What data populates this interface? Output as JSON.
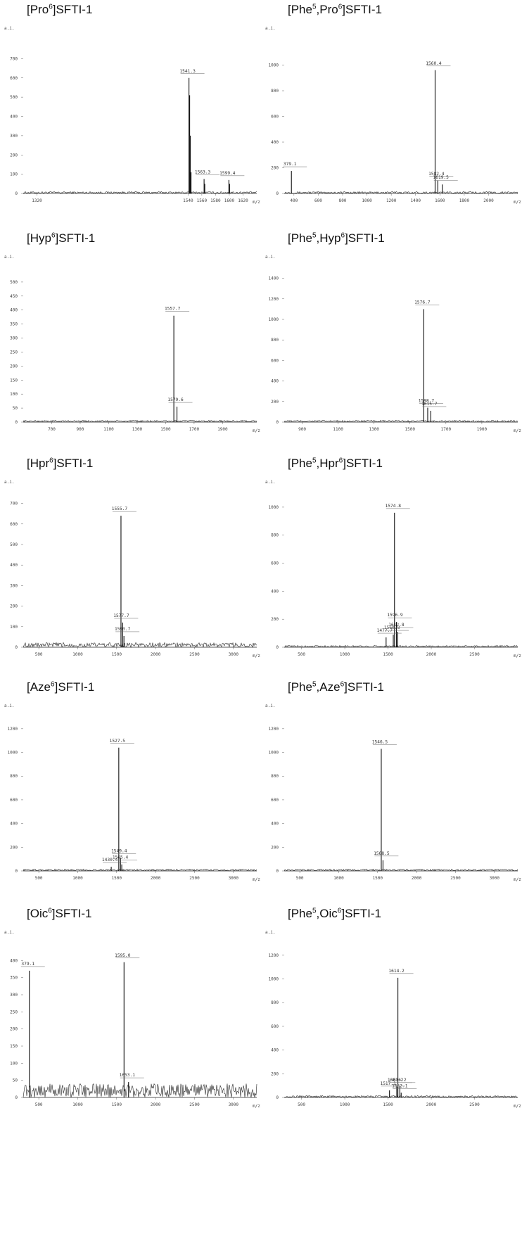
{
  "panels": [
    {
      "title_pre": "[Pro",
      "title_sup1": "6",
      "title_mid": "",
      "title_sup2": "",
      "title_post": "]SFTI-1"
    },
    {
      "title_pre": "[Phe",
      "title_sup1": "5",
      "title_mid": ",Pro",
      "title_sup2": "6",
      "title_post": "]SFTI-1"
    },
    {
      "title_pre": "[Hyp",
      "title_sup1": "6",
      "title_mid": "",
      "title_sup2": "",
      "title_post": "]SFTI-1"
    },
    {
      "title_pre": "[Phe",
      "title_sup1": "5",
      "title_mid": ",Hyp",
      "title_sup2": "6",
      "title_post": "]SFTI-1"
    },
    {
      "title_pre": "[Hpr",
      "title_sup1": "6",
      "title_mid": "",
      "title_sup2": "",
      "title_post": "]SFTI-1"
    },
    {
      "title_pre": "[Phe",
      "title_sup1": "5",
      "title_mid": ",Hpr",
      "title_sup2": "6",
      "title_post": "]SFTI-1"
    },
    {
      "title_pre": "[Aze",
      "title_sup1": "6",
      "title_mid": "",
      "title_sup2": "",
      "title_post": "]SFTI-1"
    },
    {
      "title_pre": "[Phe",
      "title_sup1": "5",
      "title_mid": ",Aze",
      "title_sup2": "6",
      "title_post": "]SFTI-1"
    },
    {
      "title_pre": "[Oic",
      "title_sup1": "6",
      "title_mid": "",
      "title_sup2": "",
      "title_post": "]SFTI-1"
    },
    {
      "title_pre": "[Phe",
      "title_sup1": "5",
      "title_mid": ",Oic",
      "title_sup2": "6",
      "title_post": "]SFTI-1"
    }
  ],
  "chart_data": [
    {
      "type": "line",
      "title": "[Pro6]SFTI-1",
      "ylabel": "a.i.",
      "xlabel": "m/z",
      "xlim": [
        1300,
        1640
      ],
      "ylim": [
        0,
        800
      ],
      "xticks": [
        1320,
        1540,
        1560,
        1580,
        1600,
        1620
      ],
      "xtick_labels": [
        "1320",
        "1540",
        "1560",
        "1580",
        "1600",
        "1620"
      ],
      "yticks": [
        0,
        100,
        200,
        300,
        400,
        500,
        600,
        700
      ],
      "peaks": [
        [
          1541.3,
          600
        ],
        [
          1542.3,
          510
        ],
        [
          1543.3,
          300
        ],
        [
          1544.3,
          110
        ],
        [
          1563.3,
          75
        ],
        [
          1564.3,
          50
        ],
        [
          1599.4,
          70
        ],
        [
          1600.4,
          50
        ]
      ],
      "peak_labels": [
        {
          "x": 1541.3,
          "text": "1541.3"
        },
        {
          "x": 1563.3,
          "text": "1563.3"
        },
        {
          "x": 1599.4,
          "text": "1599.4"
        }
      ]
    },
    {
      "type": "line",
      "title": "[Phe5,Pro6]SFTI-1",
      "ylabel": "a.i.",
      "xlabel": "m/z",
      "xlim": [
        320,
        2240
      ],
      "ylim": [
        0,
        1200
      ],
      "xticks": [
        400,
        600,
        800,
        1000,
        1200,
        1400,
        1600,
        1800,
        2000
      ],
      "xtick_labels": [
        "400",
        "600",
        "800",
        "1000",
        "1200",
        "1400",
        "1600",
        "1800",
        "2000"
      ],
      "yticks": [
        0,
        200,
        400,
        600,
        800,
        1000
      ],
      "peaks": [
        [
          379.1,
          175
        ],
        [
          1560.4,
          960
        ],
        [
          1582.4,
          100
        ],
        [
          1619.5,
          70
        ]
      ],
      "peak_labels": [
        {
          "x": 379.1,
          "text": "379.1"
        },
        {
          "x": 1560.4,
          "text": "1560.4"
        },
        {
          "x": 1582.4,
          "text": "1582.4"
        },
        {
          "x": 1619.5,
          "text": "1619.5"
        }
      ]
    },
    {
      "type": "line",
      "title": "[Hyp6]SFTI-1",
      "ylabel": "a.i.",
      "xlabel": "m/z",
      "xlim": [
        500,
        2140
      ],
      "ylim": [
        0,
        550
      ],
      "xticks": [
        700,
        900,
        1100,
        1300,
        1500,
        1700,
        1900
      ],
      "xtick_labels": [
        "700",
        "900",
        "1100",
        "1300",
        "1500",
        "1700",
        "1900"
      ],
      "yticks": [
        0,
        50,
        100,
        150,
        200,
        250,
        300,
        350,
        400,
        450,
        500
      ],
      "peaks": [
        [
          1557.7,
          380
        ],
        [
          1579.6,
          55
        ]
      ],
      "peak_labels": [
        {
          "x": 1557.7,
          "text": "1557.7"
        },
        {
          "x": 1579.6,
          "text": "1579.6"
        }
      ]
    },
    {
      "type": "line",
      "title": "[Phe5,Hyp6]SFTI-1",
      "ylabel": "a.i.",
      "xlabel": "m/z",
      "xlim": [
        800,
        2100
      ],
      "ylim": [
        0,
        1500
      ],
      "xticks": [
        900,
        1100,
        1300,
        1500,
        1700,
        1900
      ],
      "xtick_labels": [
        "900",
        "1100",
        "1300",
        "1500",
        "1700",
        "1900"
      ],
      "yticks": [
        0,
        200,
        400,
        600,
        800,
        1000,
        1200,
        1400
      ],
      "peaks": [
        [
          1576.7,
          1100
        ],
        [
          1598.7,
          140
        ],
        [
          1615.7,
          110
        ]
      ],
      "peak_labels": [
        {
          "x": 1576.7,
          "text": "1576.7"
        },
        {
          "x": 1598.7,
          "text": "1598.7"
        },
        {
          "x": 1615.7,
          "text": "1615.7"
        }
      ]
    },
    {
      "type": "line",
      "title": "[Hpr6]SFTI-1",
      "ylabel": "a.i.",
      "xlabel": "m/z",
      "xlim": [
        300,
        3300
      ],
      "ylim": [
        0,
        750
      ],
      "xticks": [
        500,
        1000,
        1500,
        2000,
        2500,
        3000
      ],
      "xtick_labels": [
        "500",
        "1000",
        "1500",
        "2000",
        "2500",
        "3000"
      ],
      "yticks": [
        0,
        100,
        200,
        300,
        400,
        500,
        600,
        700
      ],
      "peaks": [
        [
          1555.7,
          640
        ],
        [
          1577.7,
          120
        ],
        [
          1593.7,
          55
        ]
      ],
      "peak_labels": [
        {
          "x": 1555.7,
          "text": "1555.7"
        },
        {
          "x": 1577.7,
          "text": "1577.7"
        },
        {
          "x": 1593.7,
          "text": "1593.7"
        }
      ]
    },
    {
      "type": "line",
      "title": "[Phe5,Hpr6]SFTI-1",
      "ylabel": "a.i.",
      "xlabel": "m/z",
      "xlim": [
        300,
        3000
      ],
      "ylim": [
        0,
        1100
      ],
      "xticks": [
        500,
        1000,
        1500,
        2000,
        2500
      ],
      "xtick_labels": [
        "500",
        "1000",
        "1500",
        "2000",
        "2500"
      ],
      "yticks": [
        0,
        200,
        400,
        600,
        800,
        1000
      ],
      "peaks": [
        [
          1477.7,
          70
        ],
        [
          1560.8,
          90
        ],
        [
          1574.8,
          960
        ],
        [
          1596.9,
          180
        ],
        [
          1612.8,
          110
        ]
      ],
      "peak_labels": [
        {
          "x": 1477.7,
          "text": "1477.7"
        },
        {
          "x": 1560.8,
          "text": "1560.8"
        },
        {
          "x": 1574.8,
          "text": "1574.8"
        },
        {
          "x": 1596.9,
          "text": "1596.9"
        },
        {
          "x": 1612.8,
          "text": "1612.8"
        }
      ]
    },
    {
      "type": "line",
      "title": "[Aze6]SFTI-1",
      "ylabel": "a.i.",
      "xlabel": "m/z",
      "xlim": [
        300,
        3300
      ],
      "ylim": [
        0,
        1300
      ],
      "xticks": [
        500,
        1000,
        1500,
        2000,
        2500,
        3000
      ],
      "xtick_labels": [
        "500",
        "1000",
        "1500",
        "2000",
        "2500",
        "3000"
      ],
      "yticks": [
        0,
        200,
        400,
        600,
        800,
        1000,
        1200
      ],
      "peaks": [
        [
          1430.4,
          35
        ],
        [
          1527.5,
          1040
        ],
        [
          1549.4,
          110
        ],
        [
          1565.4,
          55
        ]
      ],
      "peak_labels": [
        {
          "x": 1430.4,
          "text": "1430.4"
        },
        {
          "x": 1527.5,
          "text": "1527.5"
        },
        {
          "x": 1549.4,
          "text": "1549.4"
        },
        {
          "x": 1565.4,
          "text": "1565.4"
        }
      ]
    },
    {
      "type": "line",
      "title": "[Phe5,Aze6]SFTI-1",
      "ylabel": "a.i.",
      "xlabel": "m/z",
      "xlim": [
        300,
        3300
      ],
      "ylim": [
        0,
        1300
      ],
      "xticks": [
        500,
        1000,
        1500,
        2000,
        2500,
        3000
      ],
      "xtick_labels": [
        "500",
        "1000",
        "1500",
        "2000",
        "2500",
        "3000"
      ],
      "yticks": [
        0,
        200,
        400,
        600,
        800,
        1000,
        1200
      ],
      "peaks": [
        [
          1546.5,
          1030
        ],
        [
          1568.5,
          90
        ]
      ],
      "peak_labels": [
        {
          "x": 1546.5,
          "text": "1546.5"
        },
        {
          "x": 1568.5,
          "text": "1568.5"
        }
      ]
    },
    {
      "type": "line",
      "title": "[Oic6]SFTI-1",
      "ylabel": "a.i.",
      "xlabel": "m/z",
      "xlim": [
        300,
        3300
      ],
      "ylim": [
        0,
        450
      ],
      "xticks": [
        500,
        1000,
        1500,
        2000,
        2500,
        3000
      ],
      "xtick_labels": [
        "500",
        "1000",
        "1500",
        "2000",
        "2500",
        "3000"
      ],
      "yticks": [
        0,
        50,
        100,
        150,
        200,
        250,
        300,
        350,
        400
      ],
      "peaks": [
        [
          379.1,
          370
        ],
        [
          1595.0,
          395
        ],
        [
          1653.1,
          45
        ]
      ],
      "peak_labels": [
        {
          "x": 379.1,
          "text": "379.1"
        },
        {
          "x": 1595.0,
          "text": "1595.0"
        },
        {
          "x": 1653.1,
          "text": "1653.1"
        }
      ]
    },
    {
      "type": "line",
      "title": "[Phe5,Oic6]SFTI-1",
      "ylabel": "a.i.",
      "xlabel": "m/z",
      "xlim": [
        300,
        3000
      ],
      "ylim": [
        0,
        1300
      ],
      "xticks": [
        500,
        1000,
        1500,
        2000,
        2500
      ],
      "xtick_labels": [
        "500",
        "1000",
        "1500",
        "2000",
        "2500"
      ],
      "yticks": [
        0,
        200,
        400,
        600,
        800,
        1000,
        1200
      ],
      "peaks": [
        [
          1517.1,
          60
        ],
        [
          1601.2,
          90
        ],
        [
          1614.2,
          1010
        ],
        [
          1636.2,
          90
        ],
        [
          1652.1,
          40
        ]
      ],
      "peak_labels": [
        {
          "x": 1517.1,
          "text": "1517.1"
        },
        {
          "x": 1601.2,
          "text": "1601.2"
        },
        {
          "x": 1614.2,
          "text": "1614.2"
        },
        {
          "x": 1636.2,
          "text": "1636.2"
        },
        {
          "x": 1652.1,
          "text": "1652.1"
        }
      ]
    }
  ]
}
